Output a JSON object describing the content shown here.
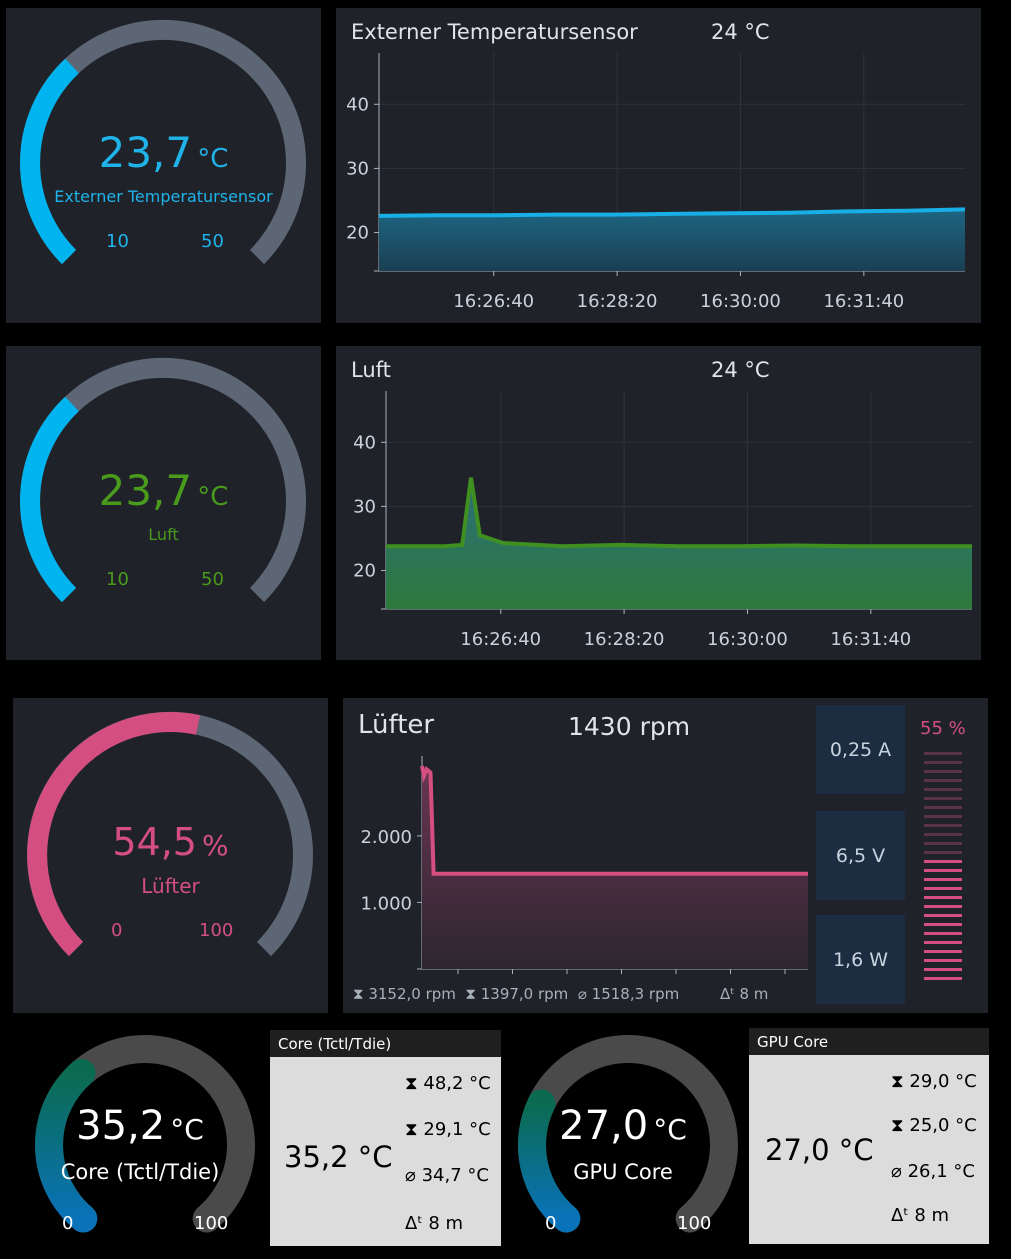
{
  "sensor1": {
    "gauge": {
      "value": "23,7",
      "unit": "°C",
      "label": "Externer Temperatursensor",
      "min": "10",
      "max": "50",
      "fill_fraction": 0.34,
      "color": "#00b4ef",
      "track": "#5d6674"
    },
    "chart": {
      "title": "Externer Temperatursensor",
      "current": "24 °C",
      "y_ticks": [
        "40",
        "30",
        "20"
      ],
      "x_ticks": [
        "16:26:40",
        "16:28:20",
        "16:30:00",
        "16:31:40"
      ]
    }
  },
  "sensor2": {
    "gauge": {
      "value": "23,7",
      "unit": "°C",
      "label": "Luft",
      "min": "10",
      "max": "50",
      "fill_fraction": 0.34,
      "value_color": "#4a9a1c",
      "arc_color": "#00b4ef",
      "track": "#5d6674"
    },
    "chart": {
      "title": "Luft",
      "current": "24 °C",
      "y_ticks": [
        "40",
        "30",
        "20"
      ],
      "x_ticks": [
        "16:26:40",
        "16:28:20",
        "16:30:00",
        "16:31:40"
      ]
    }
  },
  "fan": {
    "gauge": {
      "value": "54,5",
      "unit": "%",
      "label": "Lüfter",
      "min": "0",
      "max": "100",
      "fill_fraction": 0.545,
      "color": "#d44f80",
      "track": "#5d6674"
    },
    "chart": {
      "title": "Lüfter",
      "current": "1430 rpm",
      "y_ticks": [
        "2.000",
        "1.000"
      ],
      "footer": {
        "max_icon": "max-icon",
        "max": "3152,0 rpm",
        "min_icon": "min-icon",
        "min": "1397,0 rpm",
        "avg_icon": "avg-icon",
        "avg": "1518,3 rpm",
        "span_icon": "delta-t-icon",
        "span": "8 m"
      }
    },
    "stats": {
      "current": "0,25 A",
      "voltage": "6,5 V",
      "power": "1,6 W"
    },
    "percent_bar": {
      "label": "55 %",
      "level": 0.55
    }
  },
  "cpu": {
    "gauge": {
      "value": "35,2",
      "unit": "°C",
      "label": "Core (Tctl/Tdie)",
      "min": "0",
      "max": "100",
      "fill_fraction": 0.352
    },
    "card": {
      "title": "Core (Tctl/Tdie)",
      "current": "35,2 °C",
      "max": "48,2 °C",
      "min": "29,1 °C",
      "avg": "34,7 °C",
      "span": "8 m"
    }
  },
  "gpu": {
    "gauge": {
      "value": "27,0",
      "unit": "°C",
      "label": "GPU Core",
      "min": "0",
      "max": "100",
      "fill_fraction": 0.27
    },
    "card": {
      "title": "GPU Core",
      "current": "27,0 °C",
      "max": "29,0 °C",
      "min": "25,0 °C",
      "avg": "26,1 °C",
      "span": "8 m"
    }
  },
  "chart_data": [
    {
      "type": "area",
      "title": "Externer Temperatursensor",
      "x_ticks": [
        "16:26:40",
        "16:28:20",
        "16:30:00",
        "16:31:40"
      ],
      "ylim": [
        14,
        48
      ],
      "series": [
        {
          "x": [
            0,
            1,
            2,
            3,
            4,
            5,
            6,
            7,
            8,
            9,
            10
          ],
          "values": [
            22.6,
            22.7,
            22.7,
            22.8,
            22.8,
            22.9,
            23.0,
            23.1,
            23.3,
            23.4,
            23.6
          ]
        }
      ]
    },
    {
      "type": "area",
      "title": "Luft",
      "x_ticks": [
        "16:26:40",
        "16:28:20",
        "16:30:00",
        "16:31:40"
      ],
      "ylim": [
        14,
        48
      ],
      "series": [
        {
          "x": [
            0,
            1,
            1.3,
            1.45,
            1.6,
            2,
            3,
            4,
            5,
            6,
            7,
            8,
            9,
            10
          ],
          "values": [
            23.8,
            23.8,
            24.0,
            34.5,
            25.5,
            24.3,
            23.8,
            24.0,
            23.8,
            23.8,
            23.9,
            23.8,
            23.8,
            23.8
          ]
        }
      ]
    },
    {
      "type": "area",
      "title": "Lüfter",
      "ylim": [
        0,
        3200
      ],
      "series": [
        {
          "x": [
            0,
            0.05,
            0.12,
            0.22,
            0.3,
            0.38,
            10
          ],
          "values": [
            3050,
            2900,
            3000,
            2950,
            1430,
            1430,
            1430
          ]
        }
      ]
    }
  ]
}
